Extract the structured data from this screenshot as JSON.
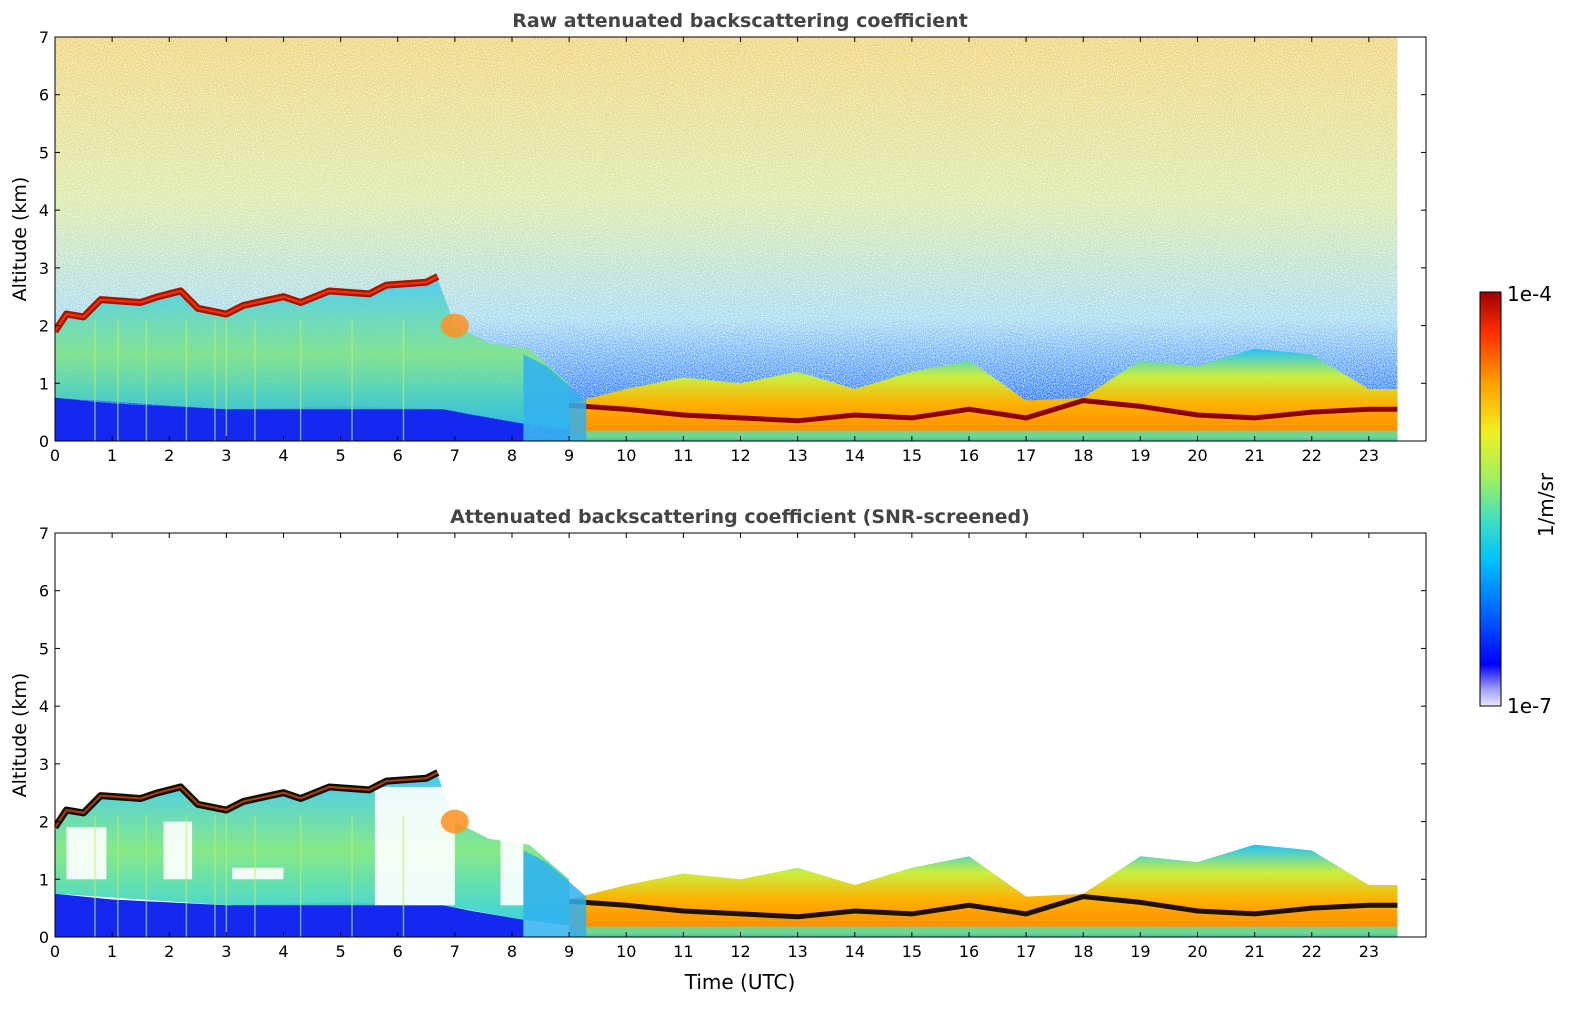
{
  "chart_data": [
    {
      "type": "heatmap",
      "title": "Raw attenuated backscattering coefficient",
      "xlabel": "",
      "ylabel": "Altitude (km)",
      "xlim": [
        0,
        24
      ],
      "ylim": [
        0,
        7
      ],
      "x_ticks": [
        "0",
        "1",
        "2",
        "3",
        "4",
        "5",
        "6",
        "7",
        "8",
        "9",
        "10",
        "11",
        "12",
        "13",
        "14",
        "15",
        "16",
        "17",
        "18",
        "19",
        "20",
        "21",
        "22",
        "23"
      ],
      "y_ticks": [
        "0",
        "1",
        "2",
        "3",
        "4",
        "5",
        "6",
        "7"
      ],
      "data_end_hour": 23.5,
      "cloud_layer": [
        {
          "t": 0.0,
          "alt": 1.9
        },
        {
          "t": 0.2,
          "alt": 2.2
        },
        {
          "t": 0.5,
          "alt": 2.15
        },
        {
          "t": 0.8,
          "alt": 2.45
        },
        {
          "t": 1.5,
          "alt": 2.4
        },
        {
          "t": 1.8,
          "alt": 2.5
        },
        {
          "t": 2.2,
          "alt": 2.6
        },
        {
          "t": 2.5,
          "alt": 2.3
        },
        {
          "t": 3.0,
          "alt": 2.2
        },
        {
          "t": 3.3,
          "alt": 2.35
        },
        {
          "t": 4.0,
          "alt": 2.5
        },
        {
          "t": 4.3,
          "alt": 2.4
        },
        {
          "t": 4.8,
          "alt": 2.6
        },
        {
          "t": 5.5,
          "alt": 2.55
        },
        {
          "t": 5.8,
          "alt": 2.7
        },
        {
          "t": 6.5,
          "alt": 2.75
        },
        {
          "t": 6.7,
          "alt": 2.85
        }
      ],
      "boundary_layer_top": [
        {
          "t": 9.0,
          "alt": 0.65
        },
        {
          "t": 10.0,
          "alt": 0.9
        },
        {
          "t": 11.0,
          "alt": 1.1
        },
        {
          "t": 12.0,
          "alt": 1.0
        },
        {
          "t": 13.0,
          "alt": 1.2
        },
        {
          "t": 14.0,
          "alt": 0.9
        },
        {
          "t": 15.0,
          "alt": 1.2
        },
        {
          "t": 16.0,
          "alt": 1.4
        },
        {
          "t": 17.0,
          "alt": 0.7
        },
        {
          "t": 18.0,
          "alt": 0.75
        },
        {
          "t": 19.0,
          "alt": 1.4
        },
        {
          "t": 20.0,
          "alt": 1.3
        },
        {
          "t": 21.0,
          "alt": 1.6
        },
        {
          "t": 22.0,
          "alt": 1.5
        },
        {
          "t": 23.0,
          "alt": 0.9
        }
      ]
    },
    {
      "type": "heatmap",
      "title": "Attenuated backscattering coefficient (SNR-screened)",
      "xlabel": "Time (UTC)",
      "ylabel": "Altitude (km)",
      "xlim": [
        0,
        24
      ],
      "ylim": [
        0,
        7
      ],
      "x_ticks": [
        "0",
        "1",
        "2",
        "3",
        "4",
        "5",
        "6",
        "7",
        "8",
        "9",
        "10",
        "11",
        "12",
        "13",
        "14",
        "15",
        "16",
        "17",
        "18",
        "19",
        "20",
        "21",
        "22",
        "23"
      ],
      "y_ticks": [
        "0",
        "1",
        "2",
        "3",
        "4",
        "5",
        "6",
        "7"
      ],
      "data_end_hour": 23.5
    }
  ],
  "colorbar": {
    "label": "1/m/sr",
    "max_label": "1e-4",
    "min_label": "1e-7",
    "scale": "log",
    "range": [
      1e-07,
      0.0001
    ],
    "colors": [
      "#e8e8f8",
      "#a0a0ff",
      "#0000ff",
      "#0060ff",
      "#00c0ff",
      "#40e0c0",
      "#a0f060",
      "#f0f020",
      "#ffa000",
      "#ff3000",
      "#a00000"
    ]
  }
}
